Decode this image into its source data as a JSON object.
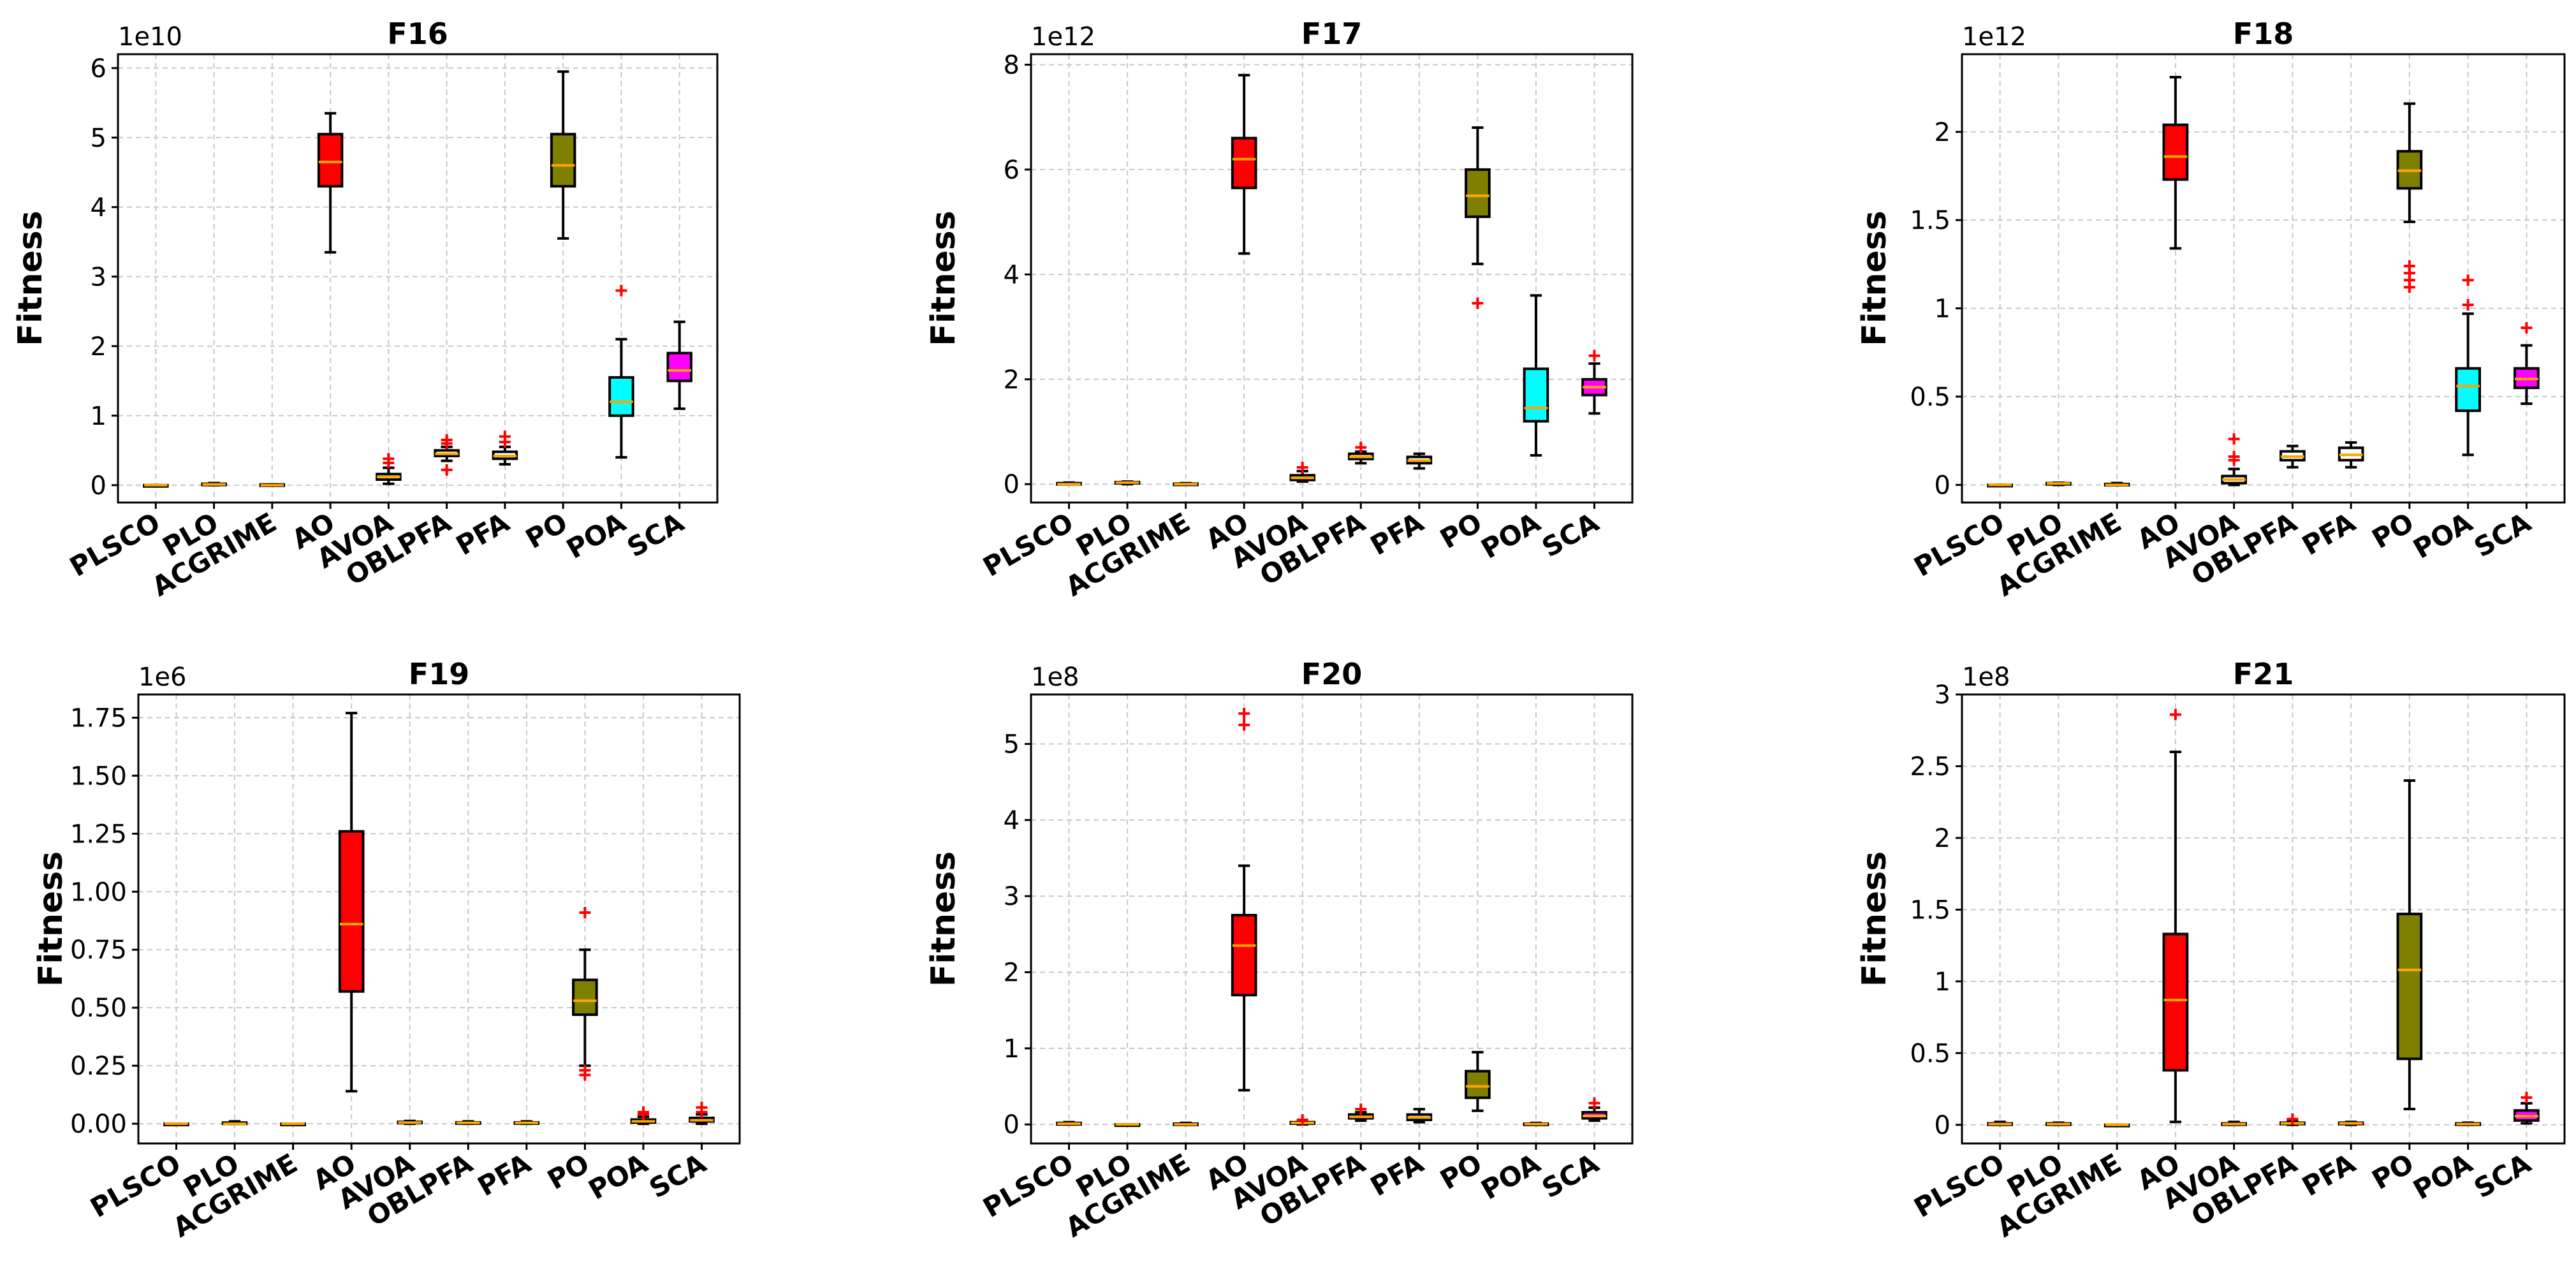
{
  "figure": {
    "colors": {
      "AO": "#ff0000",
      "PO": "#808000",
      "POA": "#00ffff",
      "SCA": "#ff00ff",
      "median": "#ffa500",
      "flier": "#ff0000",
      "default_box": "#ffffff"
    }
  },
  "chart_data": [
    {
      "type": "box",
      "title": "F16",
      "ylabel": "Fitness",
      "ylim": [
        -0.25,
        6.2
      ],
      "yticks": [
        0,
        1,
        2,
        3,
        4,
        5,
        6
      ],
      "multiplier": "1e10",
      "categories": [
        "PLSCO",
        "PLO",
        "ACGRIME",
        "AO",
        "AVOA",
        "OBLPFA",
        "PFA",
        "PO",
        "POA",
        "SCA"
      ],
      "boxes": [
        {
          "min": 0,
          "q1": 0,
          "median": 0,
          "q3": 0,
          "max": 0,
          "fliers": []
        },
        {
          "min": 0,
          "q1": 0.01,
          "median": 0.01,
          "q3": 0.02,
          "max": 0.03,
          "fliers": []
        },
        {
          "min": 0,
          "q1": 0,
          "median": 0,
          "q3": 0.01,
          "max": 0.01,
          "fliers": []
        },
        {
          "min": 3.35,
          "q1": 4.3,
          "median": 4.65,
          "q3": 5.05,
          "max": 5.35,
          "fliers": []
        },
        {
          "min": 0.02,
          "q1": 0.08,
          "median": 0.12,
          "q3": 0.16,
          "max": 0.25,
          "fliers": [
            0.32,
            0.38
          ]
        },
        {
          "min": 0.35,
          "q1": 0.42,
          "median": 0.45,
          "q3": 0.5,
          "max": 0.55,
          "fliers": [
            0.22,
            0.6,
            0.65
          ]
        },
        {
          "min": 0.3,
          "q1": 0.38,
          "median": 0.42,
          "q3": 0.48,
          "max": 0.55,
          "fliers": [
            0.62,
            0.7
          ]
        },
        {
          "min": 3.55,
          "q1": 4.3,
          "median": 4.6,
          "q3": 5.05,
          "max": 5.95,
          "fliers": []
        },
        {
          "min": 0.4,
          "q1": 1.0,
          "median": 1.2,
          "q3": 1.55,
          "max": 2.1,
          "fliers": [
            2.8
          ]
        },
        {
          "min": 1.1,
          "q1": 1.5,
          "median": 1.65,
          "q3": 1.9,
          "max": 2.35,
          "fliers": []
        }
      ]
    },
    {
      "type": "box",
      "title": "F17",
      "ylabel": "Fitness",
      "ylim": [
        -0.35,
        8.2
      ],
      "yticks": [
        0,
        2,
        4,
        6,
        8
      ],
      "multiplier": "1e12",
      "categories": [
        "PLSCO",
        "PLO",
        "ACGRIME",
        "AO",
        "AVOA",
        "OBLPFA",
        "PFA",
        "PO",
        "POA",
        "SCA"
      ],
      "boxes": [
        {
          "min": 0,
          "q1": 0,
          "median": 0,
          "q3": 0.02,
          "max": 0.03,
          "fliers": []
        },
        {
          "min": 0,
          "q1": 0.02,
          "median": 0.03,
          "q3": 0.04,
          "max": 0.05,
          "fliers": []
        },
        {
          "min": 0,
          "q1": 0,
          "median": 0,
          "q3": 0.01,
          "max": 0.02,
          "fliers": []
        },
        {
          "min": 4.4,
          "q1": 5.65,
          "median": 6.2,
          "q3": 6.6,
          "max": 7.8,
          "fliers": []
        },
        {
          "min": 0.05,
          "q1": 0.08,
          "median": 0.12,
          "q3": 0.17,
          "max": 0.25,
          "fliers": [
            0.32
          ]
        },
        {
          "min": 0.4,
          "q1": 0.48,
          "median": 0.52,
          "q3": 0.58,
          "max": 0.62,
          "fliers": [
            0.7
          ]
        },
        {
          "min": 0.3,
          "q1": 0.4,
          "median": 0.45,
          "q3": 0.52,
          "max": 0.58,
          "fliers": []
        },
        {
          "min": 4.2,
          "q1": 5.1,
          "median": 5.5,
          "q3": 6.0,
          "max": 6.8,
          "fliers": [
            3.45
          ]
        },
        {
          "min": 0.55,
          "q1": 1.2,
          "median": 1.45,
          "q3": 2.2,
          "max": 3.6,
          "fliers": []
        },
        {
          "min": 1.35,
          "q1": 1.7,
          "median": 1.85,
          "q3": 2.0,
          "max": 2.3,
          "fliers": [
            2.45
          ]
        }
      ]
    },
    {
      "type": "box",
      "title": "F18",
      "ylabel": "Fitness",
      "ylim": [
        -0.1,
        2.44
      ],
      "yticks": [
        0.0,
        0.5,
        1.0,
        1.5,
        2.0
      ],
      "multiplier": "1e12",
      "categories": [
        "PLSCO",
        "PLO",
        "ACGRIME",
        "AO",
        "AVOA",
        "OBLPFA",
        "PFA",
        "PO",
        "POA",
        "SCA"
      ],
      "boxes": [
        {
          "min": 0,
          "q1": 0,
          "median": 0,
          "q3": 0,
          "max": 0,
          "fliers": []
        },
        {
          "min": 0,
          "q1": 0.005,
          "median": 0.008,
          "q3": 0.01,
          "max": 0.012,
          "fliers": []
        },
        {
          "min": 0,
          "q1": 0,
          "median": 0,
          "q3": 0.005,
          "max": 0.01,
          "fliers": []
        },
        {
          "min": 1.34,
          "q1": 1.73,
          "median": 1.86,
          "q3": 2.04,
          "max": 2.31,
          "fliers": []
        },
        {
          "min": 0.0,
          "q1": 0.01,
          "median": 0.03,
          "q3": 0.05,
          "max": 0.09,
          "fliers": [
            0.14,
            0.16,
            0.26
          ]
        },
        {
          "min": 0.1,
          "q1": 0.14,
          "median": 0.16,
          "q3": 0.19,
          "max": 0.22,
          "fliers": []
        },
        {
          "min": 0.1,
          "q1": 0.14,
          "median": 0.17,
          "q3": 0.21,
          "max": 0.24,
          "fliers": []
        },
        {
          "min": 1.49,
          "q1": 1.68,
          "median": 1.78,
          "q3": 1.89,
          "max": 2.16,
          "fliers": [
            1.12,
            1.16,
            1.2,
            1.24
          ]
        },
        {
          "min": 0.17,
          "q1": 0.42,
          "median": 0.56,
          "q3": 0.66,
          "max": 0.97,
          "fliers": [
            1.02,
            1.16
          ]
        },
        {
          "min": 0.46,
          "q1": 0.55,
          "median": 0.6,
          "q3": 0.66,
          "max": 0.79,
          "fliers": [
            0.89
          ]
        }
      ]
    },
    {
      "type": "box",
      "title": "F19",
      "ylabel": "Fitness",
      "ylim": [
        -0.085,
        1.85
      ],
      "yticks": [
        0.0,
        0.25,
        0.5,
        0.75,
        1.0,
        1.25,
        1.5,
        1.75
      ],
      "ytick_labels": [
        "0.00",
        "0.25",
        "0.50",
        "0.75",
        "1.00",
        "1.25",
        "1.50",
        "1.75"
      ],
      "multiplier": "1e6",
      "categories": [
        "PLSCO",
        "PLO",
        "ACGRIME",
        "AO",
        "AVOA",
        "OBLPFA",
        "PFA",
        "PO",
        "POA",
        "SCA"
      ],
      "boxes": [
        {
          "min": 0,
          "q1": 0,
          "median": 0,
          "q3": 0,
          "max": 0,
          "fliers": []
        },
        {
          "min": 0,
          "q1": 0,
          "median": 0,
          "q3": 0.005,
          "max": 0.01,
          "fliers": []
        },
        {
          "min": 0,
          "q1": 0,
          "median": 0,
          "q3": 0,
          "max": 0,
          "fliers": []
        },
        {
          "min": 0.14,
          "q1": 0.57,
          "median": 0.86,
          "q3": 1.26,
          "max": 1.77,
          "fliers": []
        },
        {
          "min": 0,
          "q1": 0.003,
          "median": 0.005,
          "q3": 0.008,
          "max": 0.012,
          "fliers": []
        },
        {
          "min": 0,
          "q1": 0.002,
          "median": 0.004,
          "q3": 0.006,
          "max": 0.01,
          "fliers": []
        },
        {
          "min": 0,
          "q1": 0.002,
          "median": 0.004,
          "q3": 0.006,
          "max": 0.01,
          "fliers": []
        },
        {
          "min": 0.25,
          "q1": 0.47,
          "median": 0.53,
          "q3": 0.62,
          "max": 0.75,
          "fliers": [
            0.21,
            0.23,
            0.91
          ]
        },
        {
          "min": 0,
          "q1": 0.005,
          "median": 0.01,
          "q3": 0.018,
          "max": 0.03,
          "fliers": [
            0.04,
            0.05
          ]
        },
        {
          "min": 0,
          "q1": 0.01,
          "median": 0.015,
          "q3": 0.025,
          "max": 0.04,
          "fliers": [
            0.05,
            0.07
          ]
        }
      ]
    },
    {
      "type": "box",
      "title": "F20",
      "ylabel": "Fitness",
      "ylim": [
        -0.25,
        5.65
      ],
      "yticks": [
        0,
        1,
        2,
        3,
        4,
        5
      ],
      "multiplier": "1e8",
      "categories": [
        "PLSCO",
        "PLO",
        "ACGRIME",
        "AO",
        "AVOA",
        "OBLPFA",
        "PFA",
        "PO",
        "POA",
        "SCA"
      ],
      "boxes": [
        {
          "min": 0,
          "q1": 0,
          "median": 0.01,
          "q3": 0.02,
          "max": 0.03,
          "fliers": []
        },
        {
          "min": 0,
          "q1": 0,
          "median": 0,
          "q3": 0,
          "max": 0,
          "fliers": []
        },
        {
          "min": 0,
          "q1": 0,
          "median": 0,
          "q3": 0.01,
          "max": 0.02,
          "fliers": []
        },
        {
          "min": 0.45,
          "q1": 1.7,
          "median": 2.35,
          "q3": 2.75,
          "max": 3.4,
          "fliers": [
            5.25,
            5.4
          ]
        },
        {
          "min": 0,
          "q1": 0.01,
          "median": 0.02,
          "q3": 0.03,
          "max": 0.04,
          "fliers": [
            0.06
          ]
        },
        {
          "min": 0.05,
          "q1": 0.08,
          "median": 0.1,
          "q3": 0.13,
          "max": 0.16,
          "fliers": [
            0.2
          ]
        },
        {
          "min": 0.03,
          "q1": 0.06,
          "median": 0.09,
          "q3": 0.13,
          "max": 0.2,
          "fliers": []
        },
        {
          "min": 0.18,
          "q1": 0.35,
          "median": 0.5,
          "q3": 0.7,
          "max": 0.95,
          "fliers": []
        },
        {
          "min": 0,
          "q1": 0,
          "median": 0.005,
          "q3": 0.01,
          "max": 0.02,
          "fliers": []
        },
        {
          "min": 0.05,
          "q1": 0.08,
          "median": 0.11,
          "q3": 0.16,
          "max": 0.22,
          "fliers": [
            0.28
          ]
        }
      ]
    },
    {
      "type": "box",
      "title": "F21",
      "ylabel": "Fitness",
      "ylim": [
        -0.13,
        3.0
      ],
      "yticks": [
        0.0,
        0.5,
        1.0,
        1.5,
        2.0,
        2.5,
        3.0
      ],
      "multiplier": "1e8",
      "categories": [
        "PLSCO",
        "PLO",
        "ACGRIME",
        "AO",
        "AVOA",
        "OBLPFA",
        "PFA",
        "PO",
        "POA",
        "SCA"
      ],
      "boxes": [
        {
          "min": 0,
          "q1": 0,
          "median": 0.005,
          "q3": 0.01,
          "max": 0.02,
          "fliers": []
        },
        {
          "min": 0,
          "q1": 0,
          "median": 0.005,
          "q3": 0.01,
          "max": 0.015,
          "fliers": []
        },
        {
          "min": 0,
          "q1": 0,
          "median": 0,
          "q3": 0,
          "max": 0,
          "fliers": []
        },
        {
          "min": 0.02,
          "q1": 0.38,
          "median": 0.87,
          "q3": 1.33,
          "max": 2.6,
          "fliers": [
            2.86
          ]
        },
        {
          "min": 0,
          "q1": 0,
          "median": 0.005,
          "q3": 0.01,
          "max": 0.02,
          "fliers": []
        },
        {
          "min": 0,
          "q1": 0.005,
          "median": 0.01,
          "q3": 0.015,
          "max": 0.025,
          "fliers": [
            0.04
          ]
        },
        {
          "min": 0,
          "q1": 0.005,
          "median": 0.01,
          "q3": 0.015,
          "max": 0.02,
          "fliers": []
        },
        {
          "min": 0.11,
          "q1": 0.46,
          "median": 1.08,
          "q3": 1.47,
          "max": 2.4,
          "fliers": []
        },
        {
          "min": 0,
          "q1": 0,
          "median": 0.005,
          "q3": 0.01,
          "max": 0.015,
          "fliers": []
        },
        {
          "min": 0.01,
          "q1": 0.03,
          "median": 0.06,
          "q3": 0.1,
          "max": 0.15,
          "fliers": [
            0.19
          ]
        }
      ]
    }
  ]
}
